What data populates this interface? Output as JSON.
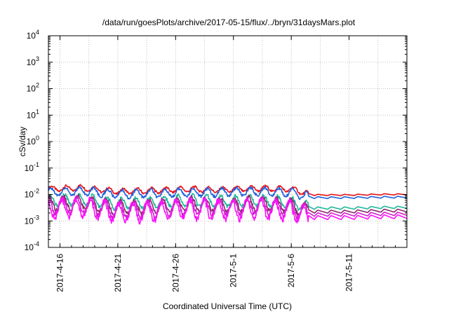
{
  "chart_data": {
    "type": "line",
    "title": "/data/run/goesPlots/archive/2017-05-15/flux/../bryn/31daysMars.plot",
    "xlabel": "Coordinated Universal Time (UTC)",
    "ylabel": "cSv/day",
    "yscale": "log",
    "ylim": [
      0.0001,
      10000
    ],
    "y_ticks": [
      {
        "base": "10",
        "exp": "-4"
      },
      {
        "base": "10",
        "exp": "-3"
      },
      {
        "base": "10",
        "exp": "-2"
      },
      {
        "base": "10",
        "exp": "-1"
      },
      {
        "base": "10",
        "exp": "0"
      },
      {
        "base": "10",
        "exp": "1"
      },
      {
        "base": "10",
        "exp": "2"
      },
      {
        "base": "10",
        "exp": "3"
      },
      {
        "base": "10",
        "exp": "4"
      }
    ],
    "xlim": [
      "2017-04-15",
      "2017-05-16"
    ],
    "x_ticks": [
      "2017-4-16",
      "2017-4-21",
      "2017-4-26",
      "2017-5-1",
      "2017-5-6",
      "2017-5-11"
    ],
    "grid": true,
    "series": [
      {
        "color": "#e8141a",
        "x": [
          "2017-04-15",
          "2017-04-18",
          "2017-04-21",
          "2017-04-24",
          "2017-04-27",
          "2017-04-30",
          "2017-05-03",
          "2017-05-06",
          "2017-05-08",
          "2017-05-11",
          "2017-05-14",
          "2017-05-16"
        ],
        "values": [
          0.016,
          0.018,
          0.013,
          0.014,
          0.016,
          0.015,
          0.017,
          0.016,
          0.0095,
          0.0095,
          0.01,
          0.01
        ]
      },
      {
        "color": "#1f5fe0",
        "x": [
          "2017-04-15",
          "2017-04-18",
          "2017-04-21",
          "2017-04-24",
          "2017-04-27",
          "2017-04-30",
          "2017-05-03",
          "2017-05-06",
          "2017-05-08",
          "2017-05-11",
          "2017-05-14",
          "2017-05-16"
        ],
        "values": [
          0.012,
          0.014,
          0.01,
          0.011,
          0.012,
          0.012,
          0.013,
          0.012,
          0.0075,
          0.0075,
          0.0078,
          0.0078
        ]
      },
      {
        "color": "#1fb89a",
        "x": [
          "2017-04-15",
          "2017-04-18",
          "2017-04-21",
          "2017-04-24",
          "2017-04-27",
          "2017-04-30",
          "2017-05-03",
          "2017-05-06",
          "2017-05-08",
          "2017-05-11",
          "2017-05-14",
          "2017-05-16"
        ],
        "values": [
          0.006,
          0.0065,
          0.0045,
          0.005,
          0.006,
          0.0055,
          0.006,
          0.005,
          0.003,
          0.003,
          0.0032,
          0.0032
        ]
      },
      {
        "color": "#8b2a6a",
        "x": [
          "2017-04-15",
          "2017-04-18",
          "2017-04-21",
          "2017-04-24",
          "2017-04-27",
          "2017-04-30",
          "2017-05-03",
          "2017-05-06",
          "2017-05-08",
          "2017-05-11",
          "2017-05-14",
          "2017-05-16"
        ],
        "values": [
          0.0045,
          0.005,
          0.0032,
          0.0035,
          0.0045,
          0.004,
          0.0045,
          0.0038,
          0.0022,
          0.0022,
          0.0024,
          0.0024
        ]
      },
      {
        "color": "#d21ed2",
        "x": [
          "2017-04-15",
          "2017-04-18",
          "2017-04-21",
          "2017-04-24",
          "2017-04-27",
          "2017-04-30",
          "2017-05-03",
          "2017-05-06",
          "2017-05-08",
          "2017-05-11",
          "2017-05-14",
          "2017-05-16"
        ],
        "values": [
          0.0035,
          0.004,
          0.0025,
          0.0028,
          0.0035,
          0.0032,
          0.0036,
          0.003,
          0.0017,
          0.0017,
          0.0018,
          0.0018
        ]
      },
      {
        "color": "#ff10ff",
        "x": [
          "2017-04-15",
          "2017-04-18",
          "2017-04-21",
          "2017-04-24",
          "2017-04-27",
          "2017-04-30",
          "2017-05-03",
          "2017-05-06",
          "2017-05-08",
          "2017-05-11",
          "2017-05-14",
          "2017-05-16"
        ],
        "values": [
          0.0028,
          0.0032,
          0.002,
          0.0022,
          0.0028,
          0.0025,
          0.0028,
          0.0024,
          0.0013,
          0.0013,
          0.0014,
          0.0014
        ]
      }
    ]
  }
}
